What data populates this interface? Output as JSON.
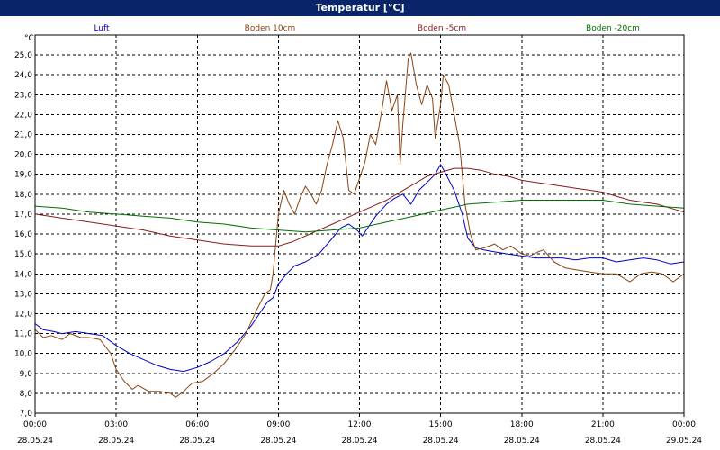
{
  "window": {
    "title": "Temperatur [°C]"
  },
  "chart_data": {
    "type": "line",
    "title": "Temperatur [°C]",
    "ylabel": "°C",
    "xlabel": "",
    "ylim": [
      7.0,
      26.0
    ],
    "xlim_hours": [
      0,
      24
    ],
    "grid": true,
    "legend_position": "top",
    "y_ticks": [
      "7,0",
      "8,0",
      "9,0",
      "10,0",
      "11,0",
      "12,0",
      "13,0",
      "14,0",
      "15,0",
      "16,0",
      "17,0",
      "18,0",
      "19,0",
      "20,0",
      "21,0",
      "22,0",
      "23,0",
      "24,0",
      "25,0"
    ],
    "x_ticks": [
      {
        "time": "00:00",
        "date": "28.05.24"
      },
      {
        "time": "03:00",
        "date": "28.05.24"
      },
      {
        "time": "06:00",
        "date": "28.05.24"
      },
      {
        "time": "09:00",
        "date": "28.05.24"
      },
      {
        "time": "12:00",
        "date": "28.05.24"
      },
      {
        "time": "15:00",
        "date": "28.05.24"
      },
      {
        "time": "18:00",
        "date": "28.05.24"
      },
      {
        "time": "21:00",
        "date": "28.05.24"
      },
      {
        "time": "00:00",
        "date": "29.05.24"
      }
    ],
    "series": [
      {
        "name": "Luft",
        "color": "#0000cc",
        "points": [
          [
            0,
            11.5
          ],
          [
            0.3,
            11.2
          ],
          [
            0.7,
            11.1
          ],
          [
            1,
            11.0
          ],
          [
            1.5,
            11.1
          ],
          [
            2,
            11.0
          ],
          [
            2.5,
            10.9
          ],
          [
            3,
            10.4
          ],
          [
            3.5,
            10.0
          ],
          [
            4,
            9.7
          ],
          [
            4.5,
            9.4
          ],
          [
            5,
            9.2
          ],
          [
            5.5,
            9.1
          ],
          [
            6,
            9.3
          ],
          [
            6.5,
            9.6
          ],
          [
            7,
            10.0
          ],
          [
            7.5,
            10.6
          ],
          [
            8,
            11.4
          ],
          [
            8.3,
            12.0
          ],
          [
            8.6,
            12.6
          ],
          [
            8.8,
            12.8
          ],
          [
            9,
            13.5
          ],
          [
            9.3,
            14.0
          ],
          [
            9.6,
            14.4
          ],
          [
            10,
            14.6
          ],
          [
            10.5,
            15.0
          ],
          [
            11,
            15.8
          ],
          [
            11.3,
            16.3
          ],
          [
            11.6,
            16.5
          ],
          [
            11.9,
            16.2
          ],
          [
            12.1,
            15.9
          ],
          [
            12.3,
            16.3
          ],
          [
            12.6,
            16.9
          ],
          [
            13,
            17.5
          ],
          [
            13.3,
            17.8
          ],
          [
            13.6,
            18.0
          ],
          [
            13.9,
            17.5
          ],
          [
            14.2,
            18.2
          ],
          [
            14.5,
            18.6
          ],
          [
            14.8,
            19.0
          ],
          [
            15,
            19.5
          ],
          [
            15.2,
            19.0
          ],
          [
            15.5,
            18.2
          ],
          [
            15.8,
            17.0
          ],
          [
            16,
            15.8
          ],
          [
            16.3,
            15.3
          ],
          [
            16.6,
            15.2
          ],
          [
            17,
            15.1
          ],
          [
            17.5,
            15.0
          ],
          [
            18,
            14.9
          ],
          [
            18.5,
            14.8
          ],
          [
            19,
            14.8
          ],
          [
            19.5,
            14.8
          ],
          [
            20,
            14.7
          ],
          [
            20.5,
            14.8
          ],
          [
            21,
            14.8
          ],
          [
            21.5,
            14.6
          ],
          [
            22,
            14.7
          ],
          [
            22.5,
            14.8
          ],
          [
            23,
            14.7
          ],
          [
            23.5,
            14.5
          ],
          [
            24,
            14.6
          ]
        ]
      },
      {
        "name": "Boden 10cm",
        "color": "#8b4513",
        "points": [
          [
            0,
            11.2
          ],
          [
            0.3,
            10.8
          ],
          [
            0.6,
            10.9
          ],
          [
            1,
            10.7
          ],
          [
            1.3,
            11.0
          ],
          [
            1.7,
            10.8
          ],
          [
            2,
            10.8
          ],
          [
            2.4,
            10.7
          ],
          [
            2.8,
            10.0
          ],
          [
            3,
            9.2
          ],
          [
            3.3,
            8.6
          ],
          [
            3.6,
            8.2
          ],
          [
            3.8,
            8.4
          ],
          [
            4.2,
            8.1
          ],
          [
            4.6,
            8.1
          ],
          [
            5,
            8.0
          ],
          [
            5.2,
            7.8
          ],
          [
            5.5,
            8.1
          ],
          [
            5.8,
            8.5
          ],
          [
            6.2,
            8.6
          ],
          [
            6.6,
            9.0
          ],
          [
            7,
            9.5
          ],
          [
            7.4,
            10.2
          ],
          [
            7.8,
            11.0
          ],
          [
            8.2,
            12.2
          ],
          [
            8.5,
            13.0
          ],
          [
            8.7,
            13.2
          ],
          [
            8.8,
            14.0
          ],
          [
            9,
            17.0
          ],
          [
            9.2,
            18.2
          ],
          [
            9.4,
            17.5
          ],
          [
            9.6,
            17.0
          ],
          [
            9.8,
            17.8
          ],
          [
            10,
            18.4
          ],
          [
            10.2,
            18.0
          ],
          [
            10.4,
            17.5
          ],
          [
            10.6,
            18.2
          ],
          [
            10.8,
            19.5
          ],
          [
            11,
            20.5
          ],
          [
            11.2,
            21.7
          ],
          [
            11.4,
            20.8
          ],
          [
            11.6,
            18.2
          ],
          [
            11.8,
            18.0
          ],
          [
            12,
            18.8
          ],
          [
            12.2,
            19.6
          ],
          [
            12.4,
            21.0
          ],
          [
            12.6,
            20.5
          ],
          [
            12.8,
            22.0
          ],
          [
            13,
            23.7
          ],
          [
            13.2,
            22.2
          ],
          [
            13.4,
            23.0
          ],
          [
            13.5,
            19.5
          ],
          [
            13.6,
            21.5
          ],
          [
            13.8,
            24.8
          ],
          [
            13.9,
            25.1
          ],
          [
            14.1,
            23.5
          ],
          [
            14.3,
            22.5
          ],
          [
            14.5,
            23.5
          ],
          [
            14.7,
            22.8
          ],
          [
            14.8,
            20.8
          ],
          [
            15,
            22.5
          ],
          [
            15.1,
            24.0
          ],
          [
            15.3,
            23.5
          ],
          [
            15.5,
            22.0
          ],
          [
            15.7,
            20.5
          ],
          [
            15.9,
            17.5
          ],
          [
            16.1,
            16.0
          ],
          [
            16.3,
            15.2
          ],
          [
            16.6,
            15.3
          ],
          [
            17,
            15.5
          ],
          [
            17.3,
            15.2
          ],
          [
            17.6,
            15.4
          ],
          [
            18,
            15.0
          ],
          [
            18.3,
            14.9
          ],
          [
            18.6,
            15.1
          ],
          [
            18.8,
            15.2
          ],
          [
            19.2,
            14.6
          ],
          [
            19.6,
            14.3
          ],
          [
            20,
            14.2
          ],
          [
            20.5,
            14.1
          ],
          [
            21,
            14.0
          ],
          [
            21.5,
            14.0
          ],
          [
            22,
            13.6
          ],
          [
            22.4,
            14.0
          ],
          [
            22.8,
            14.1
          ],
          [
            23.2,
            14.0
          ],
          [
            23.6,
            13.6
          ],
          [
            24,
            14.0
          ]
        ]
      },
      {
        "name": "Boden -5cm",
        "color": "#8b1a1a",
        "points": [
          [
            0,
            17.0
          ],
          [
            1,
            16.8
          ],
          [
            2,
            16.6
          ],
          [
            3,
            16.4
          ],
          [
            4,
            16.2
          ],
          [
            5,
            15.9
          ],
          [
            6,
            15.7
          ],
          [
            7,
            15.5
          ],
          [
            8,
            15.4
          ],
          [
            9,
            15.4
          ],
          [
            9.5,
            15.6
          ],
          [
            10,
            15.9
          ],
          [
            10.5,
            16.2
          ],
          [
            11,
            16.5
          ],
          [
            11.5,
            16.8
          ],
          [
            12,
            17.1
          ],
          [
            12.5,
            17.4
          ],
          [
            13,
            17.7
          ],
          [
            13.5,
            18.1
          ],
          [
            14,
            18.5
          ],
          [
            14.5,
            18.9
          ],
          [
            15,
            19.1
          ],
          [
            15.5,
            19.3
          ],
          [
            16,
            19.3
          ],
          [
            16.5,
            19.2
          ],
          [
            17,
            19.0
          ],
          [
            17.5,
            18.9
          ],
          [
            18,
            18.7
          ],
          [
            18.5,
            18.6
          ],
          [
            19,
            18.5
          ],
          [
            19.5,
            18.4
          ],
          [
            20,
            18.3
          ],
          [
            20.5,
            18.2
          ],
          [
            21,
            18.1
          ],
          [
            21.5,
            17.9
          ],
          [
            22,
            17.7
          ],
          [
            22.5,
            17.6
          ],
          [
            23,
            17.5
          ],
          [
            23.5,
            17.3
          ],
          [
            24,
            17.1
          ]
        ]
      },
      {
        "name": "Boden -20cm",
        "color": "#007000",
        "points": [
          [
            0,
            17.4
          ],
          [
            1,
            17.3
          ],
          [
            2,
            17.1
          ],
          [
            3,
            17.0
          ],
          [
            4,
            16.9
          ],
          [
            5,
            16.8
          ],
          [
            6,
            16.6
          ],
          [
            7,
            16.5
          ],
          [
            8,
            16.3
          ],
          [
            9,
            16.2
          ],
          [
            10,
            16.1
          ],
          [
            11,
            16.2
          ],
          [
            12,
            16.3
          ],
          [
            13,
            16.6
          ],
          [
            14,
            16.9
          ],
          [
            15,
            17.2
          ],
          [
            16,
            17.5
          ],
          [
            17,
            17.6
          ],
          [
            18,
            17.7
          ],
          [
            19,
            17.7
          ],
          [
            20,
            17.7
          ],
          [
            21,
            17.7
          ],
          [
            22,
            17.5
          ],
          [
            23,
            17.4
          ],
          [
            24,
            17.3
          ]
        ]
      }
    ]
  }
}
